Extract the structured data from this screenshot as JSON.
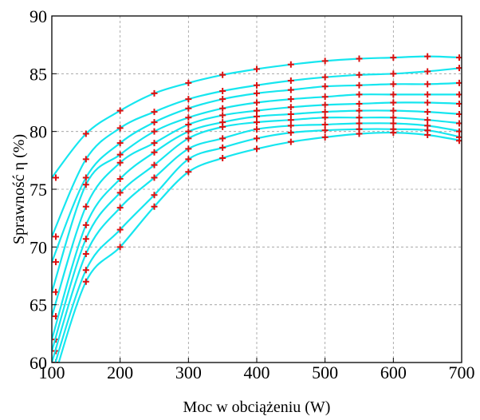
{
  "colors": {
    "line": "#16e6ef",
    "marker": "#dd1111",
    "frame": "#000000",
    "grid": "#9a9a9a"
  },
  "chart_data": {
    "type": "line",
    "title": "",
    "xlabel": "Moc w obciążeniu (W)",
    "ylabel": "Sprawność η (%)",
    "xlim": [
      100,
      700
    ],
    "ylim": [
      60,
      90
    ],
    "xticks": [
      100,
      200,
      300,
      400,
      500,
      600,
      700
    ],
    "yticks": [
      60,
      65,
      70,
      75,
      80,
      85,
      90
    ],
    "grid": true,
    "legend": "none",
    "markers": "plus",
    "x": [
      100,
      150,
      200,
      250,
      300,
      350,
      400,
      450,
      500,
      550,
      600,
      650,
      700
    ],
    "series": [
      {
        "values": [
          76.0,
          79.8,
          81.8,
          83.3,
          84.2,
          84.9,
          85.4,
          85.8,
          86.1,
          86.3,
          86.4,
          86.5,
          86.4
        ]
      },
      {
        "values": [
          70.9,
          77.6,
          80.3,
          81.7,
          82.8,
          83.5,
          84.0,
          84.4,
          84.7,
          84.9,
          85.0,
          85.2,
          85.5
        ]
      },
      {
        "values": [
          68.7,
          76.0,
          79.0,
          80.8,
          82.0,
          82.8,
          83.3,
          83.6,
          83.9,
          84.0,
          84.1,
          84.1,
          84.2
        ]
      },
      {
        "values": [
          66.1,
          75.4,
          78.0,
          80.0,
          81.2,
          82.0,
          82.5,
          82.8,
          83.0,
          83.2,
          83.2,
          83.2,
          83.2
        ]
      },
      {
        "values": [
          64.0,
          73.5,
          77.3,
          79.0,
          80.6,
          81.4,
          81.8,
          82.1,
          82.3,
          82.4,
          82.5,
          82.5,
          82.4
        ]
      },
      {
        "values": [
          62.0,
          71.9,
          75.9,
          78.2,
          80.0,
          80.8,
          81.3,
          81.5,
          81.7,
          81.8,
          81.8,
          81.7,
          81.5
        ]
      },
      {
        "values": [
          61.0,
          70.7,
          74.7,
          77.1,
          79.4,
          80.4,
          80.8,
          81.0,
          81.2,
          81.2,
          81.2,
          81.0,
          80.7
        ]
      },
      {
        "values": [
          60.0,
          69.4,
          73.4,
          76.0,
          78.5,
          79.4,
          80.2,
          80.5,
          80.6,
          80.7,
          80.7,
          80.5,
          80.0
        ]
      },
      {
        "values": [
          59.0,
          68.0,
          71.5,
          74.5,
          77.6,
          78.6,
          79.4,
          79.9,
          80.1,
          80.2,
          80.2,
          80.1,
          79.5
        ]
      },
      {
        "values": [
          58.0,
          67.0,
          70.0,
          73.5,
          76.5,
          77.7,
          78.5,
          79.1,
          79.5,
          79.8,
          79.9,
          79.7,
          79.2
        ]
      }
    ]
  }
}
